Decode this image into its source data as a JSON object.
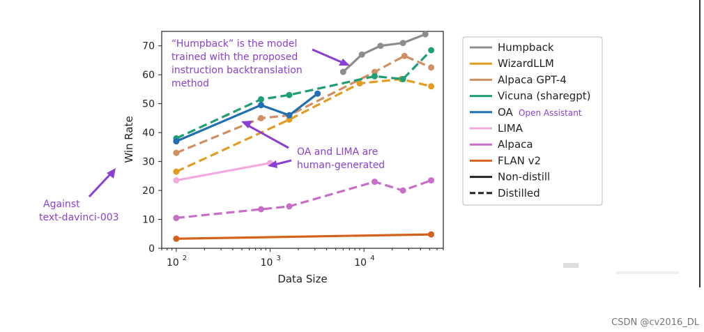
{
  "chart_data": {
    "type": "line",
    "xlabel": "Data Size",
    "ylabel": "Win Rate",
    "xscale": "log",
    "xlim": [
      70,
      70000
    ],
    "ylim": [
      0,
      75
    ],
    "yticks": [
      0,
      10,
      20,
      30,
      40,
      50,
      60,
      70
    ],
    "xticks": [
      {
        "value": 100,
        "base": "10",
        "exp": "2"
      },
      {
        "value": 1000,
        "base": "10",
        "exp": "3"
      },
      {
        "value": 10000,
        "base": "10",
        "exp": "4"
      }
    ],
    "series": [
      {
        "name": "Humpback",
        "color": "#8c8c8c",
        "dash": false,
        "x": [
          6000,
          9500,
          15000,
          26000,
          45000
        ],
        "y": [
          61,
          67,
          70,
          71,
          74
        ]
      },
      {
        "name": "WizardLLM",
        "color": "#e39c22",
        "dash": true,
        "x": [
          100,
          1600,
          9000,
          25000,
          52000
        ],
        "y": [
          26.5,
          44.5,
          57,
          58.5,
          56
        ]
      },
      {
        "name": "Alpaca GPT-4",
        "color": "#cf8f63",
        "dash": true,
        "x": [
          100,
          800,
          1600,
          13000,
          27000,
          52000
        ],
        "y": [
          33,
          45,
          46,
          61,
          66.5,
          62.5
        ]
      },
      {
        "name": "Vicuna (sharegpt)",
        "color": "#1f9e74",
        "dash": true,
        "x": [
          100,
          800,
          1600,
          13000,
          26000,
          52000
        ],
        "y": [
          38,
          51.5,
          53,
          59.5,
          58.5,
          68.5
        ]
      },
      {
        "name": "OA",
        "color": "#1f6fb2",
        "dash": false,
        "x": [
          100,
          800,
          1600,
          3200
        ],
        "y": [
          37,
          49.5,
          46,
          53.5
        ]
      },
      {
        "name": "LIMA",
        "color": "#f2a9de",
        "dash": false,
        "x": [
          100,
          1000
        ],
        "y": [
          23.5,
          29.5
        ]
      },
      {
        "name": "Alpaca",
        "color": "#c76fc6",
        "dash": true,
        "x": [
          100,
          800,
          1600,
          13000,
          26000,
          52000
        ],
        "y": [
          10.5,
          13.5,
          14.5,
          23,
          20,
          23.5
        ]
      },
      {
        "name": "FLAN v2",
        "color": "#d4621c",
        "dash": false,
        "x": [
          100,
          52000
        ],
        "y": [
          3.3,
          4.8
        ]
      }
    ],
    "legend": {
      "placement": "right",
      "entries": [
        {
          "label": "Humpback",
          "color": "#8c8c8c",
          "style": "solid"
        },
        {
          "label": "WizardLLM",
          "color": "#e39c22",
          "style": "solid"
        },
        {
          "label": "Alpaca GPT-4",
          "color": "#cf8f63",
          "style": "solid"
        },
        {
          "label": "Vicuna (sharegpt)",
          "color": "#1f9e74",
          "style": "solid"
        },
        {
          "label": "OA",
          "color": "#1f6fb2",
          "style": "solid",
          "note": "Open Assistant"
        },
        {
          "label": "LIMA",
          "color": "#f2a9de",
          "style": "solid"
        },
        {
          "label": "Alpaca",
          "color": "#c76fc6",
          "style": "solid"
        },
        {
          "label": "FLAN v2",
          "color": "#d4621c",
          "style": "solid"
        },
        {
          "label": "Non-distill",
          "color": "#222222",
          "style": "solid"
        },
        {
          "label": "Distilled",
          "color": "#222222",
          "style": "dashed"
        }
      ]
    },
    "annotations": {
      "humpback": [
        "“Humpback” is the model",
        "trained with the proposed",
        "instruction backtranslation",
        "method"
      ],
      "oa_lima": [
        "OA and LIMA are",
        "human-generated"
      ],
      "against": [
        "Against",
        "text-davinci-003"
      ]
    },
    "annotation_color": "#8a3fd1"
  },
  "watermark": "CSDN @cv2016_DL"
}
